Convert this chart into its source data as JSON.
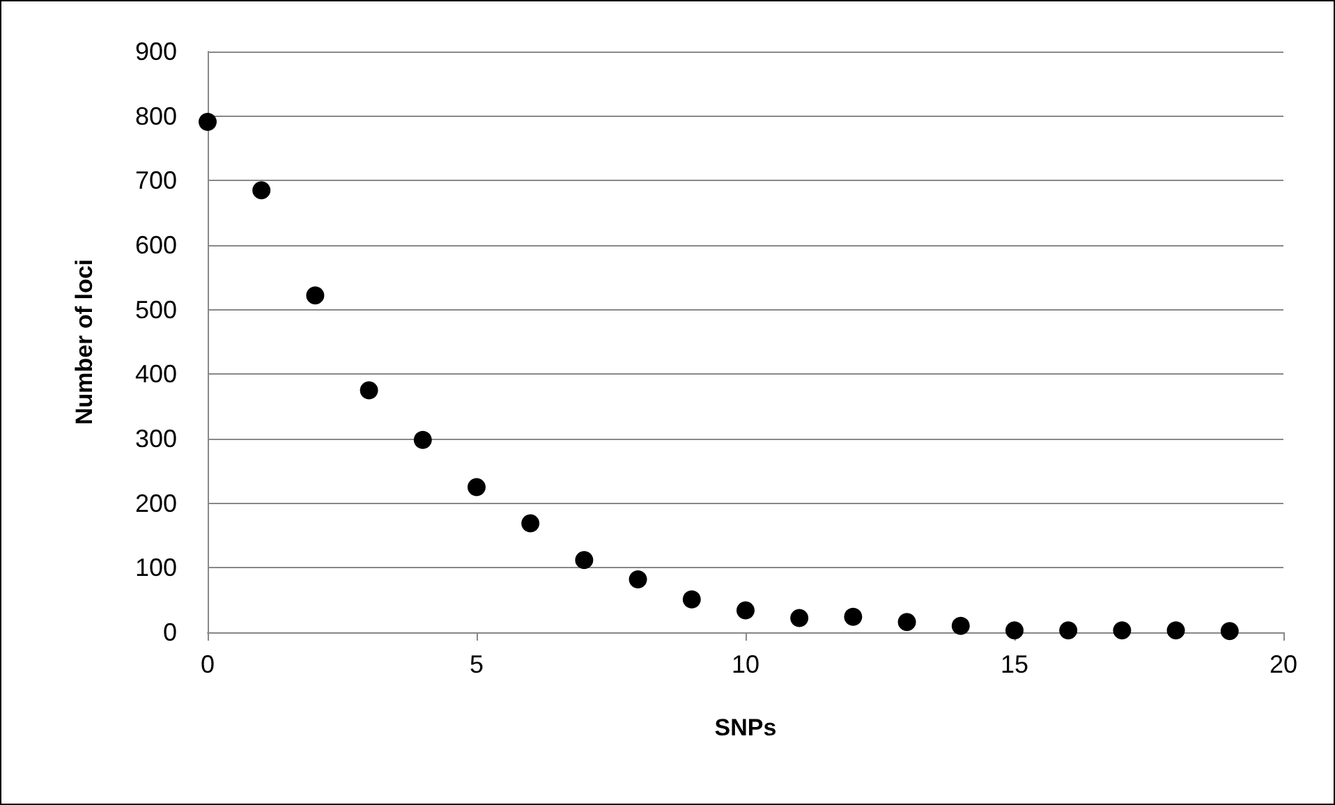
{
  "chart_data": {
    "type": "scatter",
    "xlabel": "SNPs",
    "ylabel": "Number of loci",
    "x": [
      0,
      1,
      2,
      3,
      4,
      5,
      6,
      7,
      8,
      9,
      10,
      11,
      12,
      13,
      14,
      15,
      16,
      17,
      18,
      19
    ],
    "series": [
      {
        "color": "#000000",
        "values": [
          791,
          685,
          522,
          375,
          298,
          225,
          169,
          112,
          82,
          51,
          34,
          22,
          24,
          16,
          10,
          3,
          3,
          3,
          3,
          2
        ]
      }
    ],
    "xlim": [
      0,
      20
    ],
    "xticks": [
      0,
      5,
      10,
      15,
      20
    ],
    "ylim": [
      0,
      900
    ],
    "yticks": [
      0,
      100,
      200,
      300,
      400,
      500,
      600,
      700,
      800,
      900
    ],
    "grid": "y",
    "marker": "circle"
  }
}
